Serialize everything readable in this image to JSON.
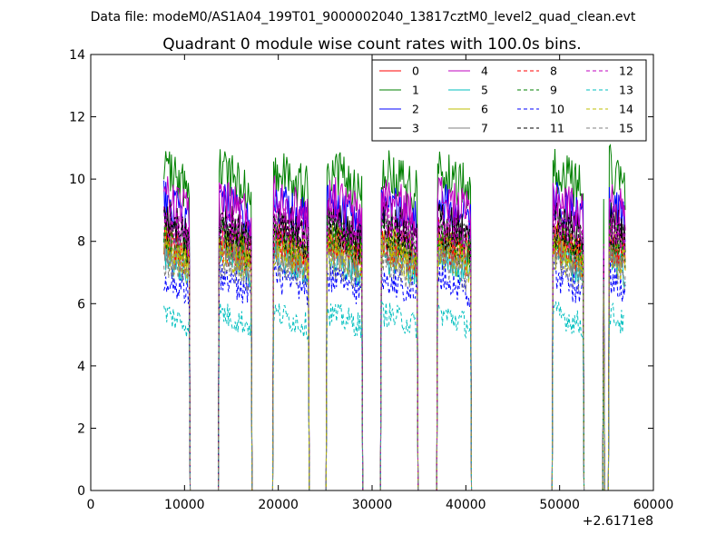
{
  "suptitle": "Data file: modeM0/AS1A04_199T01_9000002040_13817cztM0_level2_quad_clean.evt",
  "chart_data": {
    "type": "line",
    "title": "Quadrant 0 module wise count rates with 100.0s bins.",
    "xlabel": "",
    "ylabel": "",
    "x_offset_label": "+2.6171e8",
    "xlim": [
      0,
      60000
    ],
    "ylim": [
      0,
      14
    ],
    "x_ticks": [
      0,
      10000,
      20000,
      30000,
      40000,
      50000,
      60000
    ],
    "x_tick_labels": [
      "0",
      "10000",
      "20000",
      "30000",
      "40000",
      "50000",
      "60000"
    ],
    "y_ticks": [
      0,
      2,
      4,
      6,
      8,
      10,
      12,
      14
    ],
    "y_tick_labels": [
      "0",
      "2",
      "4",
      "6",
      "8",
      "10",
      "12",
      "14"
    ],
    "bin_seconds": 100,
    "data_start": 7800,
    "data_end": 57000,
    "active_segments": [
      [
        7800,
        10500
      ],
      [
        13700,
        17100
      ],
      [
        19500,
        23200
      ],
      [
        25200,
        28900
      ],
      [
        31000,
        34800
      ],
      [
        37000,
        40500
      ],
      [
        49300,
        52500
      ],
      [
        55300,
        57000
      ]
    ],
    "spikes": [
      {
        "x": 54700,
        "value": 7.8
      }
    ],
    "legend": {
      "placement": "top-right",
      "columns": 4
    },
    "series": [
      {
        "name": "0",
        "color": "#ff0000",
        "style": "solid",
        "mean": 7.7
      },
      {
        "name": "1",
        "color": "#008000",
        "style": "solid",
        "mean": 9.8
      },
      {
        "name": "2",
        "color": "#0000ff",
        "style": "solid",
        "mean": 8.8
      },
      {
        "name": "3",
        "color": "#000000",
        "style": "solid",
        "mean": 8.3
      },
      {
        "name": "4",
        "color": "#bf00bf",
        "style": "solid",
        "mean": 9.0
      },
      {
        "name": "5",
        "color": "#00bfbf",
        "style": "solid",
        "mean": 7.2
      },
      {
        "name": "6",
        "color": "#bfbf00",
        "style": "solid",
        "mean": 7.6
      },
      {
        "name": "7",
        "color": "#808080",
        "style": "solid",
        "mean": 7.4
      },
      {
        "name": "8",
        "color": "#ff0000",
        "style": "dashed",
        "mean": 7.5
      },
      {
        "name": "9",
        "color": "#008000",
        "style": "dashed",
        "mean": 7.8
      },
      {
        "name": "10",
        "color": "#0000ff",
        "style": "dashed",
        "mean": 6.5
      },
      {
        "name": "11",
        "color": "#000000",
        "style": "dashed",
        "mean": 8.0
      },
      {
        "name": "12",
        "color": "#bf00bf",
        "style": "dashed",
        "mean": 8.2
      },
      {
        "name": "13",
        "color": "#00bfbf",
        "style": "dashed",
        "mean": 5.4
      },
      {
        "name": "14",
        "color": "#bfbf00",
        "style": "dashed",
        "mean": 7.3
      },
      {
        "name": "15",
        "color": "#808080",
        "style": "dashed",
        "mean": 7.0
      }
    ]
  }
}
